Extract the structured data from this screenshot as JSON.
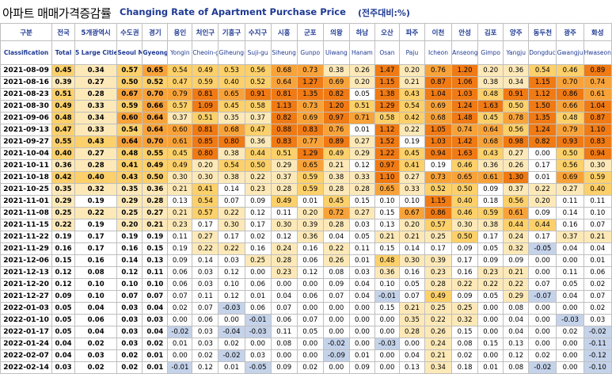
{
  "title_kr": "아파트 매매가격증감률",
  "title_en": "Changing Rate of Apartment Purchase Price",
  "unit": "(전주대비:%)",
  "colors": {
    "c1": "#ffffff",
    "c2": "#fde9b8",
    "c3": "#fcd06a",
    "c4": "#f8a33a",
    "c5": "#f07a14",
    "neg": "#c5d3ea",
    "header_text": "#1f3a93",
    "grid": "#bfbfbf"
  },
  "columns": [
    {
      "kr": "구분",
      "en": "Classification"
    },
    {
      "kr": "전국",
      "en": "Total"
    },
    {
      "kr": "5개광역시",
      "en": "5 Large Cities"
    },
    {
      "kr": "수도권",
      "en": "Seoul Metropolitan"
    },
    {
      "kr": "경기",
      "en": "Gyeong gi-do"
    },
    {
      "kr": "용인",
      "en": "Yongin"
    },
    {
      "kr": "처인구",
      "en": "Cheoin-gu"
    },
    {
      "kr": "기흥구",
      "en": "Giheung-gu"
    },
    {
      "kr": "수지구",
      "en": "Suji-gu"
    },
    {
      "kr": "시흥",
      "en": "Siheung"
    },
    {
      "kr": "군포",
      "en": "Gunpo"
    },
    {
      "kr": "의왕",
      "en": "Uiwang"
    },
    {
      "kr": "하남",
      "en": "Hanam"
    },
    {
      "kr": "오산",
      "en": "Osan"
    },
    {
      "kr": "파주",
      "en": "Paju"
    },
    {
      "kr": "이천",
      "en": "Icheon"
    },
    {
      "kr": "안성",
      "en": "Anseong"
    },
    {
      "kr": "김포",
      "en": "Gimpo"
    },
    {
      "kr": "양주",
      "en": "Yangju"
    },
    {
      "kr": "동두천",
      "en": "Dongducheon"
    },
    {
      "kr": "광주",
      "en": "Gwangju"
    },
    {
      "kr": "화성",
      "en": "Hwaseong"
    }
  ],
  "rows": [
    {
      "date": "2021-08-09",
      "values": [
        "0.45",
        "0.34",
        "0.57",
        "0.65",
        "0.54",
        "0.49",
        "0.53",
        "0.56",
        "0.68",
        "0.73",
        "0.38",
        "0.26",
        "1.47",
        "0.20",
        "0.76",
        "1.20",
        "0.20",
        "0.36",
        "0.54",
        "0.46",
        "0.89"
      ]
    },
    {
      "date": "2021-08-16",
      "values": [
        "0.39",
        "0.27",
        "0.50",
        "0.52",
        "0.47",
        "0.59",
        "0.40",
        "0.52",
        "0.64",
        "1.27",
        "0.69",
        "0.20",
        "1.15",
        "0.21",
        "0.87",
        "1.06",
        "0.38",
        "0.34",
        "1.15",
        "0.70",
        "0.74"
      ]
    },
    {
      "date": "2021-08-23",
      "values": [
        "0.51",
        "0.28",
        "0.67",
        "0.70",
        "0.79",
        "0.81",
        "0.65",
        "0.91",
        "0.81",
        "1.35",
        "0.82",
        "0.05",
        "1.38",
        "0.43",
        "1.04",
        "1.03",
        "0.48",
        "0.91",
        "1.12",
        "0.86",
        "0.61"
      ]
    },
    {
      "date": "2021-08-30",
      "values": [
        "0.49",
        "0.33",
        "0.59",
        "0.66",
        "0.57",
        "1.09",
        "0.45",
        "0.58",
        "1.13",
        "0.73",
        "1.20",
        "0.51",
        "1.29",
        "0.54",
        "0.69",
        "1.24",
        "1.63",
        "0.50",
        "1.50",
        "0.66",
        "1.04"
      ]
    },
    {
      "date": "2021-09-06",
      "values": [
        "0.48",
        "0.34",
        "0.60",
        "0.64",
        "0.37",
        "0.51",
        "0.35",
        "0.37",
        "0.82",
        "0.69",
        "0.97",
        "0.71",
        "0.58",
        "0.42",
        "0.68",
        "1.48",
        "0.45",
        "0.78",
        "1.35",
        "0.48",
        "0.87"
      ]
    },
    {
      "date": "2021-09-13",
      "values": [
        "0.47",
        "0.33",
        "0.54",
        "0.64",
        "0.60",
        "0.81",
        "0.68",
        "0.47",
        "0.88",
        "0.83",
        "0.76",
        "0.01",
        "1.12",
        "0.22",
        "1.05",
        "0.74",
        "0.64",
        "0.56",
        "1.24",
        "0.79",
        "1.10"
      ]
    },
    {
      "date": "2021-09-27",
      "values": [
        "0.55",
        "0.43",
        "0.64",
        "0.70",
        "0.61",
        "0.85",
        "0.80",
        "0.36",
        "0.83",
        "0.77",
        "0.89",
        "0.27",
        "1.52",
        "0.19",
        "1.03",
        "1.42",
        "0.68",
        "0.98",
        "0.82",
        "0.93",
        "0.83"
      ]
    },
    {
      "date": "2021-10-04",
      "values": [
        "0.40",
        "0.27",
        "0.48",
        "0.55",
        "0.45",
        "0.80",
        "0.38",
        "0.44",
        "0.51",
        "1.29",
        "0.49",
        "0.29",
        "1.22",
        "0.45",
        "0.94",
        "1.63",
        "0.43",
        "0.27",
        "0.00",
        "0.50",
        "0.94"
      ]
    },
    {
      "date": "2021-10-11",
      "values": [
        "0.36",
        "0.28",
        "0.41",
        "0.49",
        "0.49",
        "0.20",
        "0.54",
        "0.50",
        "0.29",
        "0.65",
        "0.21",
        "0.12",
        "0.97",
        "0.41",
        "0.19",
        "0.46",
        "0.36",
        "0.26",
        "0.17",
        "0.56",
        "0.30"
      ]
    },
    {
      "date": "2021-10-18",
      "values": [
        "0.42",
        "0.40",
        "0.43",
        "0.50",
        "0.30",
        "0.30",
        "0.38",
        "0.22",
        "0.37",
        "0.59",
        "0.38",
        "0.33",
        "1.10",
        "0.27",
        "0.73",
        "0.65",
        "0.61",
        "1.30",
        "0.01",
        "0.69",
        "0.59"
      ]
    },
    {
      "date": "2021-10-25",
      "values": [
        "0.35",
        "0.32",
        "0.35",
        "0.36",
        "0.21",
        "0.41",
        "0.14",
        "0.23",
        "0.28",
        "0.59",
        "0.28",
        "0.28",
        "0.65",
        "0.33",
        "0.52",
        "0.50",
        "0.09",
        "0.37",
        "0.22",
        "0.27",
        "0.40"
      ]
    },
    {
      "date": "2021-11-01",
      "values": [
        "0.29",
        "0.19",
        "0.29",
        "0.28",
        "0.13",
        "0.54",
        "0.07",
        "0.09",
        "0.49",
        "0.01",
        "0.45",
        "0.15",
        "0.10",
        "0.10",
        "1.15",
        "0.40",
        "0.18",
        "0.56",
        "0.20",
        "0.11",
        "0.11"
      ]
    },
    {
      "date": "2021-11-08",
      "values": [
        "0.25",
        "0.22",
        "0.25",
        "0.27",
        "0.21",
        "0.57",
        "0.22",
        "0.12",
        "0.11",
        "0.20",
        "0.72",
        "0.27",
        "0.15",
        "0.67",
        "0.86",
        "0.46",
        "0.59",
        "0.61",
        "0.09",
        "0.14",
        "0.10"
      ]
    },
    {
      "date": "2021-11-15",
      "values": [
        "0.22",
        "0.19",
        "0.20",
        "0.21",
        "0.23",
        "0.17",
        "0.30",
        "0.17",
        "0.30",
        "0.39",
        "0.28",
        "0.03",
        "0.13",
        "0.20",
        "0.57",
        "0.30",
        "0.38",
        "0.44",
        "0.44",
        "0.16",
        "0.07"
      ]
    },
    {
      "date": "2021-11-22",
      "values": [
        "0.19",
        "0.17",
        "0.19",
        "0.19",
        "0.11",
        "0.27",
        "0.17",
        "0.02",
        "0.12",
        "0.36",
        "0.04",
        "0.05",
        "0.21",
        "0.21",
        "0.25",
        "0.50",
        "0.17",
        "0.24",
        "0.17",
        "0.37",
        "0.21"
      ]
    },
    {
      "date": "2021-11-29",
      "values": [
        "0.16",
        "0.17",
        "0.16",
        "0.15",
        "0.19",
        "0.22",
        "0.22",
        "0.16",
        "0.24",
        "0.16",
        "0.22",
        "0.11",
        "0.15",
        "0.14",
        "0.17",
        "0.09",
        "0.05",
        "0.32",
        "-0.05",
        "0.04",
        "0.04"
      ]
    },
    {
      "date": "2021-12-06",
      "values": [
        "0.15",
        "0.16",
        "0.14",
        "0.13",
        "0.09",
        "0.14",
        "0.03",
        "0.25",
        "0.28",
        "0.06",
        "0.26",
        "0.01",
        "0.48",
        "0.30",
        "0.39",
        "0.17",
        "0.09",
        "0.09",
        "0.00",
        "0.00",
        "0.01"
      ]
    },
    {
      "date": "2021-12-13",
      "values": [
        "0.12",
        "0.08",
        "0.12",
        "0.11",
        "0.06",
        "0.03",
        "0.12",
        "0.00",
        "0.23",
        "0.12",
        "0.08",
        "0.03",
        "0.36",
        "0.16",
        "0.23",
        "0.16",
        "0.23",
        "0.21",
        "0.00",
        "0.11",
        "0.06"
      ]
    },
    {
      "date": "2021-12-20",
      "values": [
        "0.12",
        "0.10",
        "0.10",
        "0.10",
        "0.06",
        "0.03",
        "0.10",
        "0.06",
        "0.00",
        "0.00",
        "0.09",
        "0.04",
        "0.10",
        "0.05",
        "0.28",
        "0.22",
        "0.22",
        "0.22",
        "0.07",
        "0.05",
        "0.02"
      ]
    },
    {
      "date": "2021-12-27",
      "values": [
        "0.09",
        "0.10",
        "0.07",
        "0.07",
        "0.07",
        "0.11",
        "0.12",
        "0.01",
        "0.04",
        "0.06",
        "0.07",
        "0.04",
        "-0.01",
        "0.07",
        "0.49",
        "0.09",
        "0.05",
        "0.29",
        "-0.07",
        "0.04",
        "0.07"
      ]
    },
    {
      "date": "2022-01-03",
      "values": [
        "0.05",
        "0.04",
        "0.03",
        "0.04",
        "0.02",
        "0.07",
        "-0.03",
        "0.06",
        "0.07",
        "0.00",
        "0.00",
        "0.00",
        "0.15",
        "0.21",
        "0.25",
        "0.25",
        "0.00",
        "0.08",
        "0.00",
        "0.00",
        "0.02"
      ]
    },
    {
      "date": "2022-01-10",
      "values": [
        "0.05",
        "0.06",
        "0.03",
        "0.03",
        "0.00",
        "0.06",
        "0.00",
        "-0.01",
        "0.06",
        "0.07",
        "0.00",
        "0.00",
        "0.00",
        "0.35",
        "0.22",
        "0.32",
        "0.00",
        "0.04",
        "0.00",
        "-0.03",
        "0.03"
      ]
    },
    {
      "date": "2022-01-17",
      "values": [
        "0.05",
        "0.04",
        "0.03",
        "0.04",
        "-0.02",
        "0.03",
        "-0.04",
        "-0.03",
        "0.11",
        "0.05",
        "0.00",
        "0.00",
        "0.00",
        "0.28",
        "0.26",
        "0.15",
        "0.00",
        "0.04",
        "0.00",
        "0.02",
        "-0.02"
      ]
    },
    {
      "date": "2022-01-24",
      "values": [
        "0.04",
        "0.02",
        "0.03",
        "0.02",
        "0.01",
        "0.03",
        "0.02",
        "0.00",
        "0.08",
        "0.00",
        "-0.02",
        "0.00",
        "-0.03",
        "0.00",
        "0.24",
        "0.08",
        "0.15",
        "0.13",
        "0.00",
        "0.00",
        "-0.11"
      ]
    },
    {
      "date": "2022-02-07",
      "values": [
        "0.04",
        "0.03",
        "0.02",
        "0.01",
        "0.00",
        "0.02",
        "-0.02",
        "0.03",
        "0.00",
        "0.00",
        "-0.09",
        "0.01",
        "0.00",
        "0.04",
        "0.21",
        "0.02",
        "0.00",
        "0.12",
        "0.02",
        "0.00",
        "-0.12"
      ]
    },
    {
      "date": "2022-02-14",
      "values": [
        "0.03",
        "0.02",
        "0.02",
        "0.01",
        "-0.01",
        "0.12",
        "0.01",
        "-0.05",
        "0.09",
        "0.02",
        "0.00",
        "0.09",
        "0.00",
        "0.13",
        "0.34",
        "0.18",
        "0.01",
        "0.08",
        "-0.02",
        "0.00",
        "-0.10"
      ]
    }
  ]
}
